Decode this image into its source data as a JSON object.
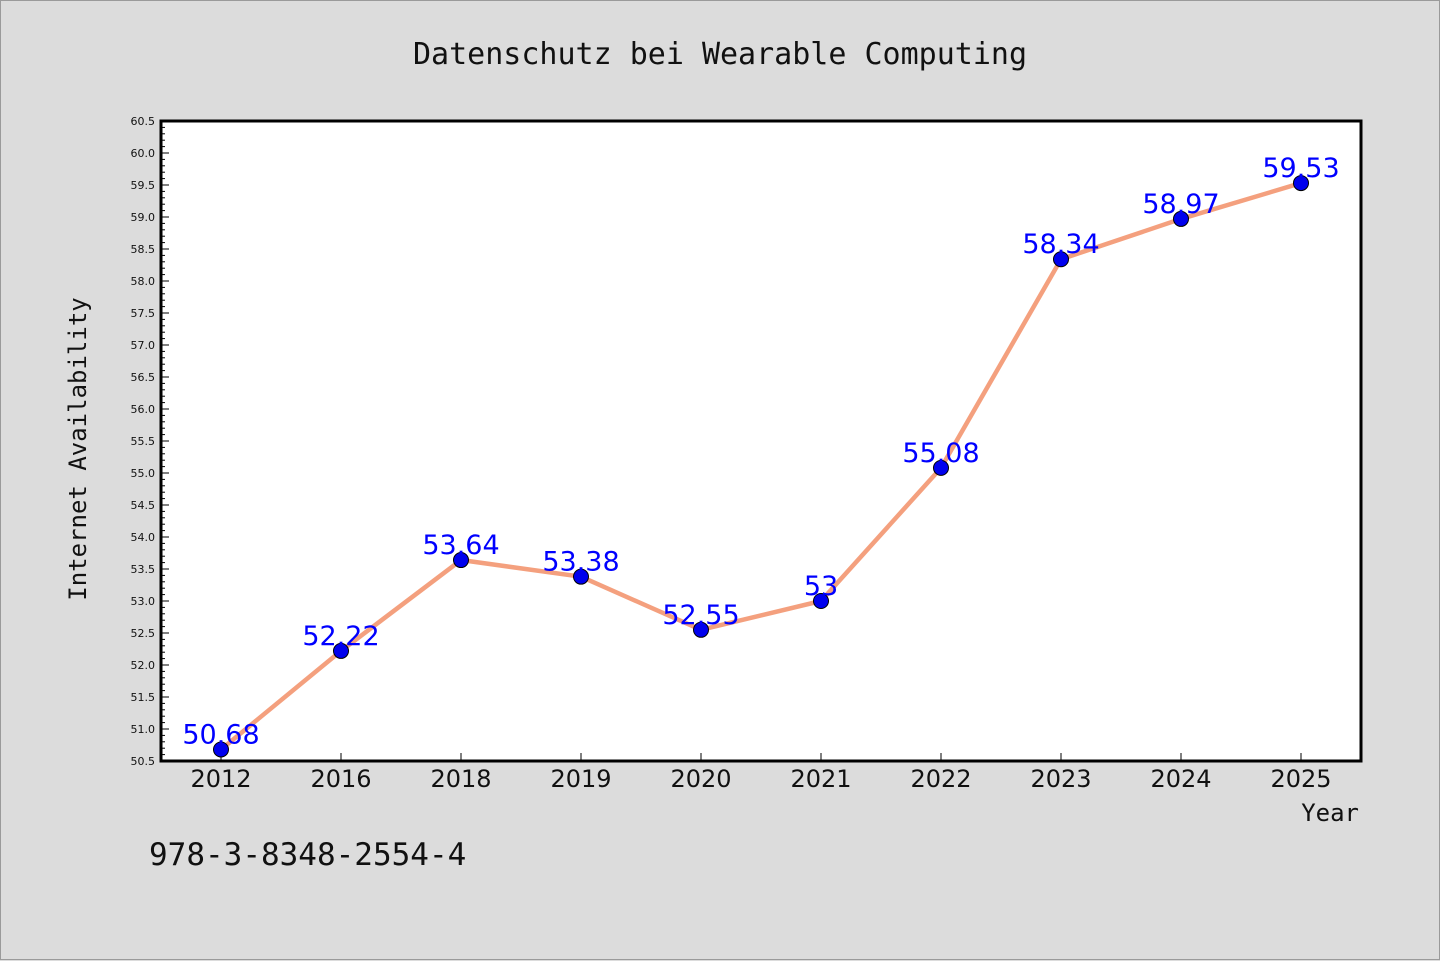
{
  "chart_data": {
    "type": "line",
    "title": "Datenschutz bei Wearable Computing",
    "xlabel": "Year",
    "ylabel": "Internet Availability",
    "categories": [
      "2012",
      "2016",
      "2018",
      "2019",
      "2020",
      "2021",
      "2022",
      "2023",
      "2024",
      "2025"
    ],
    "series": [
      {
        "values": [
          50.68,
          52.22,
          53.64,
          53.38,
          52.55,
          53,
          55.08,
          58.34,
          58.97,
          59.53
        ],
        "color": "#f4a07e",
        "marker_color": "#0000ee"
      }
    ],
    "data_labels": [
      "50.68",
      "52.22",
      "53.64",
      "53.38",
      "52.55",
      "53",
      "55.08",
      "58.34",
      "58.97",
      "59.53"
    ],
    "ylim": [
      50.5,
      60.5
    ],
    "yticks": [
      "50.5",
      "51.0",
      "51.5",
      "52.0",
      "52.5",
      "53.0",
      "53.5",
      "54.0",
      "54.5",
      "55.0",
      "55.5",
      "56.0",
      "56.5",
      "57.0",
      "57.5",
      "58.0",
      "58.5",
      "59.0",
      "59.5",
      "60.0",
      "60.5"
    ],
    "grid": false,
    "legend": "none"
  },
  "footer": {
    "isbn": "978-3-8348-2554-4"
  }
}
